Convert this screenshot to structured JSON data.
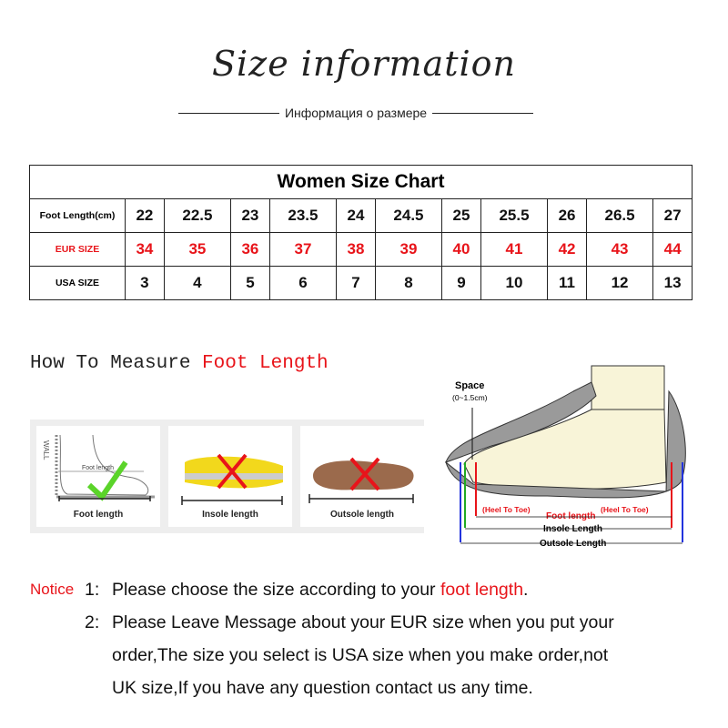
{
  "title": "Size information",
  "subtitle": "Информация о размере",
  "chart": {
    "caption": "Women Size Chart",
    "rows": [
      {
        "label": "Foot Length(cm)",
        "values": [
          "22",
          "22.5",
          "23",
          "23.5",
          "24",
          "24.5",
          "25",
          "25.5",
          "26",
          "26.5",
          "27"
        ],
        "color": "#111111"
      },
      {
        "label": "EUR SIZE",
        "values": [
          "34",
          "35",
          "36",
          "37",
          "38",
          "39",
          "40",
          "41",
          "42",
          "43",
          "44"
        ],
        "color": "#e8141a"
      },
      {
        "label": "USA SIZE",
        "values": [
          "3",
          "4",
          "5",
          "6",
          "7",
          "8",
          "9",
          "10",
          "11",
          "12",
          "13"
        ],
        "color": "#111111"
      }
    ]
  },
  "howto": {
    "prefix": "How To Measure ",
    "highlight": "Foot Length"
  },
  "methods": [
    {
      "label": "Foot length",
      "mark": "check-icon",
      "wall": "WALL",
      "inner": "Foot length"
    },
    {
      "label": "Insole length",
      "mark": "cross-icon"
    },
    {
      "label": "Outsole length",
      "mark": "cross-icon"
    }
  ],
  "diagram": {
    "space": "Space",
    "space_range": "(0~1.5cm)",
    "heel_to_toe": "(Heel To Toe)",
    "foot_length": "Foot length",
    "insole": "Insole Length",
    "outsole": "Outsole Length"
  },
  "notice": {
    "label": "Notice",
    "items": [
      {
        "num": "1:",
        "pre": "Please choose the size according to your ",
        "hl": "foot length",
        "post": "."
      },
      {
        "num": "2:",
        "lines": [
          "Please Leave Message about your EUR size when you put your",
          "order,The size you select is USA size when you make order,not",
          "UK size,If you have any question  contact us any time."
        ]
      }
    ]
  },
  "colors": {
    "accent": "#e8141a"
  }
}
